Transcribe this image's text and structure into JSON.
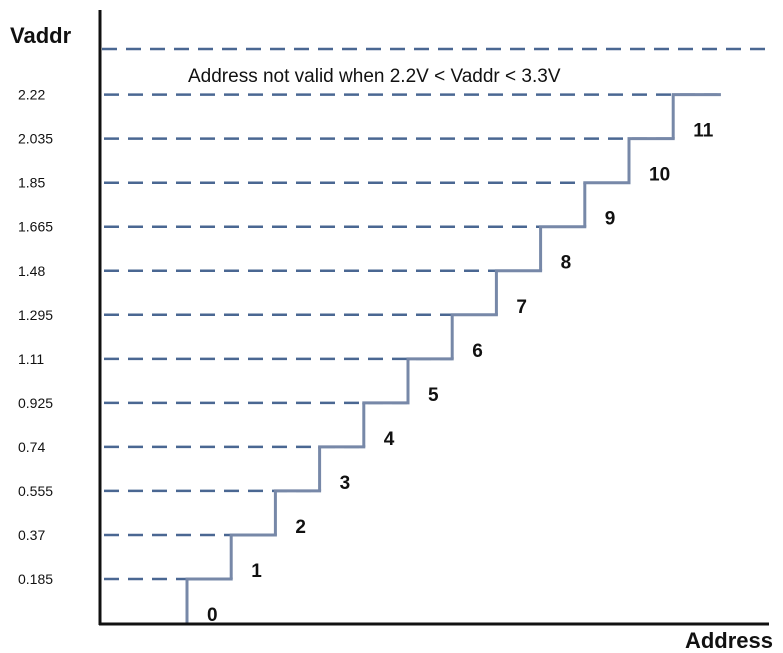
{
  "chart_data": {
    "type": "line",
    "title": "",
    "xlabel": "Address",
    "ylabel": "Vaddr",
    "y_ticks": [
      "0.185",
      "0.37",
      "0.555",
      "0.74",
      "0.925",
      "1.11",
      "1.295",
      "1.48",
      "1.665",
      "1.85",
      "2.035",
      "2.22"
    ],
    "ylim": [
      0,
      2.22
    ],
    "grid": "horizontal dashed lines at each tick",
    "annotation": "Address not valid when 2.2V < Vaddr < 3.3V",
    "steps": [
      {
        "address": "0",
        "vaddr_low": 0,
        "vaddr_high": 0.185
      },
      {
        "address": "1",
        "vaddr_low": 0.185,
        "vaddr_high": 0.37
      },
      {
        "address": "2",
        "vaddr_low": 0.37,
        "vaddr_high": 0.555
      },
      {
        "address": "3",
        "vaddr_low": 0.555,
        "vaddr_high": 0.74
      },
      {
        "address": "4",
        "vaddr_low": 0.74,
        "vaddr_high": 0.925
      },
      {
        "address": "5",
        "vaddr_low": 0.925,
        "vaddr_high": 1.11
      },
      {
        "address": "6",
        "vaddr_low": 1.11,
        "vaddr_high": 1.295
      },
      {
        "address": "7",
        "vaddr_low": 1.295,
        "vaddr_high": 1.48
      },
      {
        "address": "8",
        "vaddr_low": 1.48,
        "vaddr_high": 1.665
      },
      {
        "address": "9",
        "vaddr_low": 1.665,
        "vaddr_high": 1.85
      },
      {
        "address": "10",
        "vaddr_low": 1.85,
        "vaddr_high": 2.035
      },
      {
        "address": "11",
        "vaddr_low": 2.035,
        "vaddr_high": 2.22
      }
    ]
  },
  "colors": {
    "step_line": "#7788a8",
    "grid_dash": "#4a6792",
    "axis": "#111111",
    "text": "#111111"
  }
}
